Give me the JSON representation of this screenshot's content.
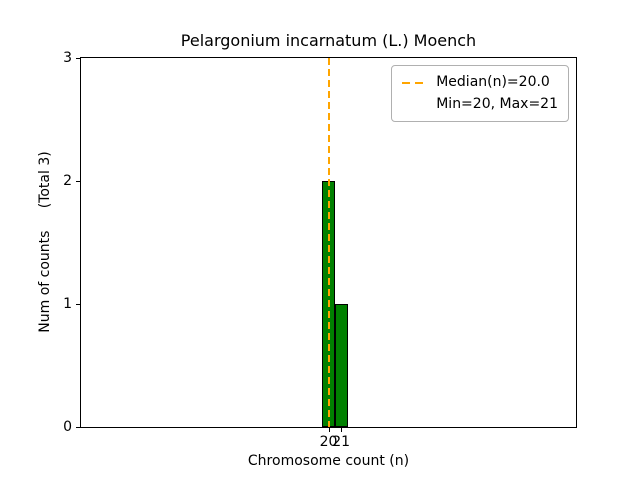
{
  "chart_data": {
    "type": "bar",
    "title": "Pelargonium incarnatum (L.) Moench",
    "xlabel": "Chromosome count (n)",
    "ylabel": "Num of counts     (Total 3)",
    "total_counts": 3,
    "categories": [
      20,
      21
    ],
    "values": [
      2,
      1
    ],
    "bar_width": 1,
    "bar_color": "#008000",
    "bar_edge_color": "#000000",
    "xlim": [
      0.5,
      39.5
    ],
    "ylim": [
      0,
      3
    ],
    "xticks": [
      20,
      21
    ],
    "yticks": [
      0,
      1,
      2,
      3
    ],
    "grid": false,
    "median_line": {
      "x": 20.0,
      "color": "#ffa500",
      "style": "dashed",
      "orientation": "vertical"
    },
    "legend": {
      "position": "upper-right",
      "entries": [
        {
          "label": "Median(n)=20.0",
          "sample": "orange-dashed-line"
        },
        {
          "label": "Min=20, Max=21",
          "sample": "none"
        }
      ]
    }
  }
}
